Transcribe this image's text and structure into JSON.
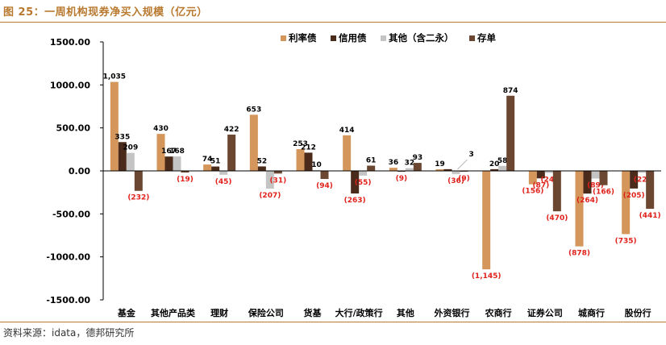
{
  "header": {
    "title": "图 25：一周机构现券净买入规模（亿元）"
  },
  "footer": {
    "source": "资料来源：idata，德邦研究所"
  },
  "colors": {
    "accent": "#b8792f",
    "negative_label": "#e0211b"
  },
  "chart_data": {
    "type": "bar",
    "title": "",
    "xlabel": "",
    "ylabel": "",
    "ylim": [
      -1500,
      1500
    ],
    "yticks": [
      1500,
      1000,
      500,
      0,
      -500,
      -1000,
      -1500
    ],
    "ytick_labels": [
      "1500.00",
      "1000.00",
      "500.00",
      "0.00",
      "-500.00",
      "-1000.00",
      "-1500.00"
    ],
    "legend_position": "top",
    "categories": [
      "基金",
      "其他产品类",
      "理财",
      "保险公司",
      "货基",
      "大行/政策行",
      "其他",
      "外资银行",
      "农商行",
      "证券公司",
      "城商行",
      "股份行"
    ],
    "series": [
      {
        "name": "利率债",
        "color": "#d4965a",
        "values": [
          1035,
          430,
          74,
          653,
          253,
          414,
          36,
          19,
          -1145,
          -156,
          -878,
          -735
        ],
        "labels": [
          "1,035",
          "430",
          "74",
          "653",
          "253",
          "414",
          "36",
          "19",
          "(1,145)",
          "(156)",
          "(878)",
          "(735)"
        ]
      },
      {
        "name": "信用债",
        "color": "#4a2a1a",
        "values": [
          335,
          167,
          51,
          52,
          212,
          -263,
          -9,
          20,
          20,
          -87,
          -264,
          -205
        ],
        "labels": [
          "335",
          "167",
          "51",
          "52",
          "212",
          "(263)",
          "(9)",
          "",
          "20",
          "(87)",
          "(264)",
          "(205)"
        ]
      },
      {
        "name": "其他（含二永）",
        "color": "#c4c4c4",
        "values": [
          209,
          168,
          -45,
          -207,
          10,
          -55,
          32,
          -36,
          58,
          -24,
          -89,
          -22
        ],
        "labels": [
          "209",
          "168",
          "(45)",
          "(207)",
          "10",
          "(55)",
          "32",
          "(36)",
          "58",
          "(24)",
          "(89)",
          "(22)"
        ]
      },
      {
        "name": "存单",
        "color": "#6b4630",
        "values": [
          -232,
          -19,
          422,
          -31,
          -94,
          61,
          93,
          -9,
          874,
          -470,
          -166,
          -441
        ],
        "labels": [
          "(232)",
          "(19)",
          "422",
          "(31)",
          "(94)",
          "61",
          "93",
          "(9)",
          "874",
          "(470)",
          "(166)",
          "(441)"
        ]
      }
    ],
    "annotations": [
      {
        "text": "3",
        "category": "外资银行"
      }
    ]
  }
}
